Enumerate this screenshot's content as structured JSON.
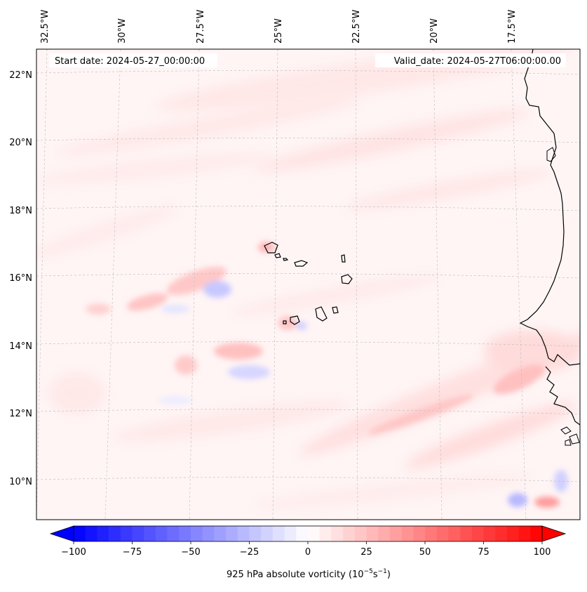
{
  "header": {
    "start_date": "Start date: 2024-05-27_00:00:00",
    "valid_date": "Valid_date: 2024-05-27T06:00:00.00"
  },
  "map": {
    "longitude_labels": [
      "32.5°W",
      "30°W",
      "27.5°W",
      "25°W",
      "22.5°W",
      "20°W",
      "17.5°W"
    ],
    "latitude_labels": [
      "22°N",
      "20°N",
      "18°N",
      "16°N",
      "14°N",
      "12°N",
      "10°N"
    ],
    "extent": {
      "lon_min": -32.7,
      "lon_max": -15.2,
      "lat_min": 8.9,
      "lat_max": 22.8
    },
    "gridlines": true,
    "colors": {
      "coast": "#000000",
      "gridline": "#bbbbbb",
      "positive": "#ff0000",
      "negative": "#0000ff"
    }
  },
  "colorbar": {
    "label_text": "925 hPa absolute vorticity (10",
    "label_exp1": "−5",
    "label_mid": "s",
    "label_exp2": "−1",
    "label_end": ")",
    "ticks": [
      "−100",
      "−75",
      "−50",
      "−25",
      "0",
      "25",
      "50",
      "75",
      "100"
    ],
    "range": [
      -100,
      100
    ],
    "colormap": "bwr",
    "extend": "both"
  }
}
